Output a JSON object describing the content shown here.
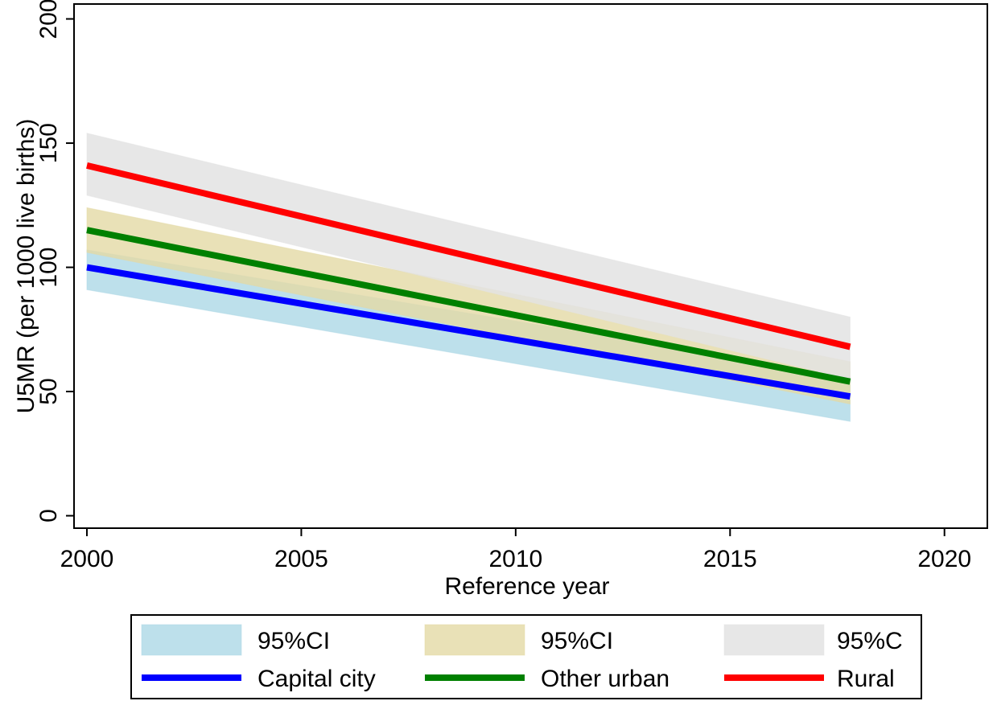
{
  "chart_data": {
    "type": "line",
    "title": "",
    "xlabel": "Reference year",
    "ylabel": "U5MR (per 1000 live births)",
    "xlim": [
      1999.7,
      2021
    ],
    "ylim": [
      -5,
      206
    ],
    "xticks": [
      2000,
      2005,
      2010,
      2015,
      2020
    ],
    "xtick_labels": [
      "2000",
      "2005",
      "2010",
      "2015",
      "2020"
    ],
    "yticks": [
      0,
      50,
      100,
      150,
      200
    ],
    "ytick_labels": [
      "0",
      "50",
      "100",
      "150",
      "200"
    ],
    "grid": false,
    "legend_position": "bottom",
    "bands": [
      {
        "label": "95%CI",
        "color": "#add8e6",
        "opacity": 0.8,
        "x": [
          2000,
          2017.8
        ],
        "lower": [
          91,
          38
        ],
        "upper": [
          107,
          56
        ]
      },
      {
        "label": "95%CI",
        "color": "#e4d9a5",
        "opacity": 0.8,
        "x": [
          2000,
          2017.8
        ],
        "lower": [
          106,
          45
        ],
        "upper": [
          124,
          62
        ]
      },
      {
        "label": "95%C",
        "color": "#e3e3e3",
        "opacity": 0.85,
        "x": [
          2000,
          2017.8
        ],
        "lower": [
          129,
          55
        ],
        "upper": [
          154,
          80
        ]
      }
    ],
    "series": [
      {
        "name": "Capital city",
        "color": "#0000ff",
        "x": [
          2000,
          2017.8
        ],
        "values": [
          100,
          48
        ]
      },
      {
        "name": "Other urban",
        "color": "#008000",
        "x": [
          2000,
          2017.8
        ],
        "values": [
          115,
          54
        ]
      },
      {
        "name": "Rural",
        "color": "#ff0000",
        "x": [
          2000,
          2017.8
        ],
        "values": [
          141,
          68
        ]
      }
    ]
  }
}
